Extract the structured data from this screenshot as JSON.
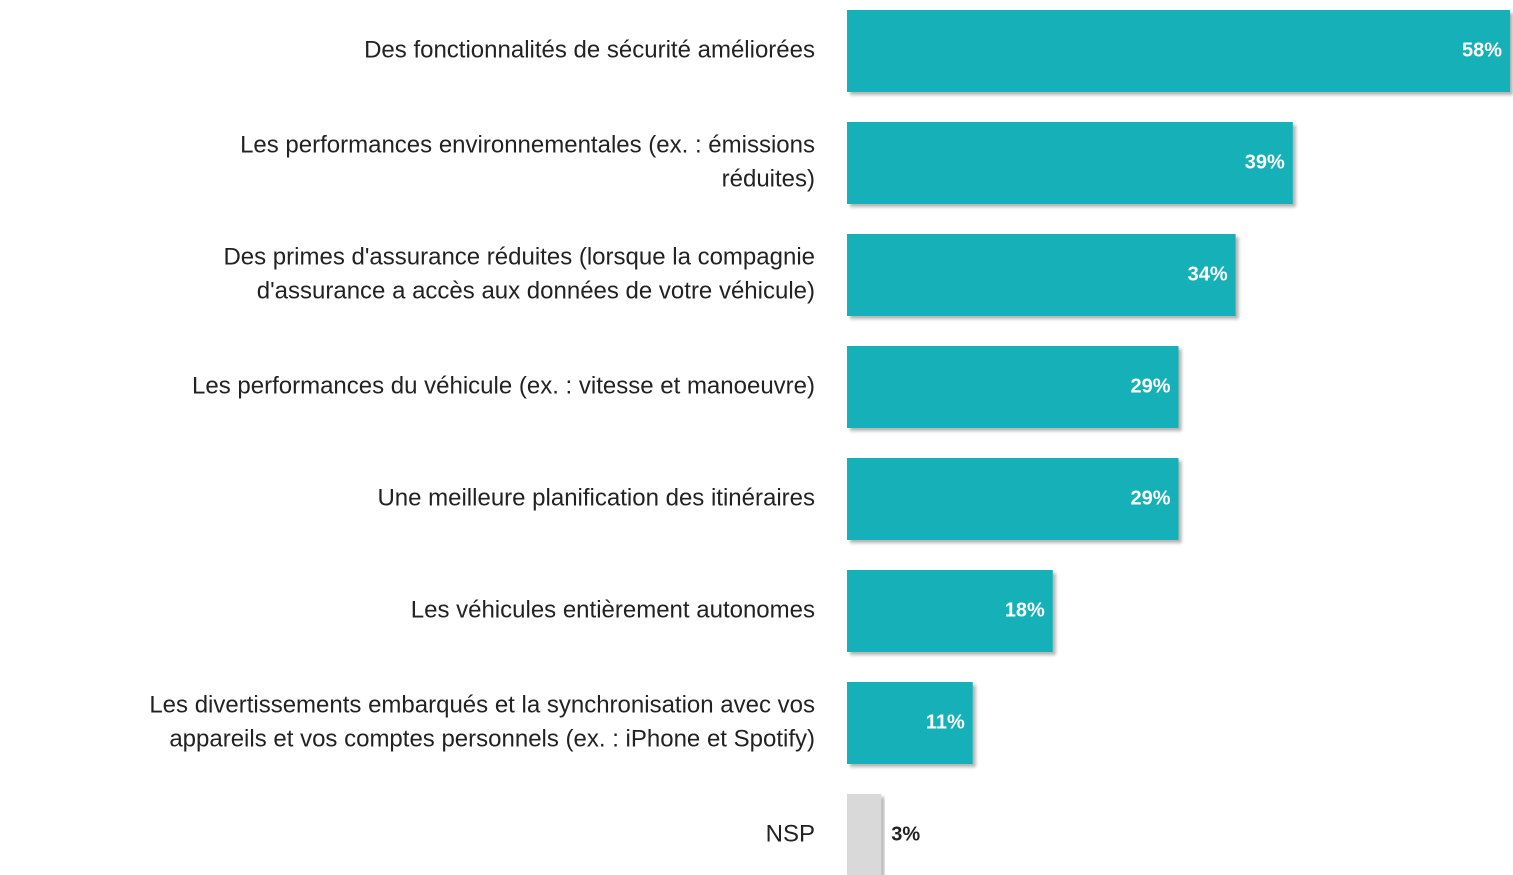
{
  "chart_data": {
    "type": "bar",
    "orientation": "horizontal",
    "categories": [
      [
        "Des fonctionnalités de sécurité améliorées"
      ],
      [
        "Les performances environnementales (ex. : émissions",
        "réduites)"
      ],
      [
        "Des primes d'assurance réduites (lorsque la compagnie",
        "d'assurance a accès aux données de votre véhicule)"
      ],
      [
        "Les performances du véhicule (ex. : vitesse et manoeuvre)"
      ],
      [
        "Une meilleure planification des itinéraires"
      ],
      [
        "Les véhicules entièrement autonomes"
      ],
      [
        "Les divertissements embarqués et la synchronisation avec vos",
        "appareils et vos comptes personnels (ex. : iPhone et Spotify)"
      ],
      [
        "NSP"
      ]
    ],
    "values": [
      58,
      39,
      34,
      29,
      29,
      18,
      11,
      3
    ],
    "value_labels": [
      "58%",
      "39%",
      "34%",
      "29%",
      "29%",
      "18%",
      "11%",
      "3%"
    ],
    "colors": [
      "#14b0b8",
      "#14b0b8",
      "#14b0b8",
      "#14b0b8",
      "#14b0b8",
      "#14b0b8",
      "#14b0b8",
      "#d9d9d9"
    ]
  }
}
